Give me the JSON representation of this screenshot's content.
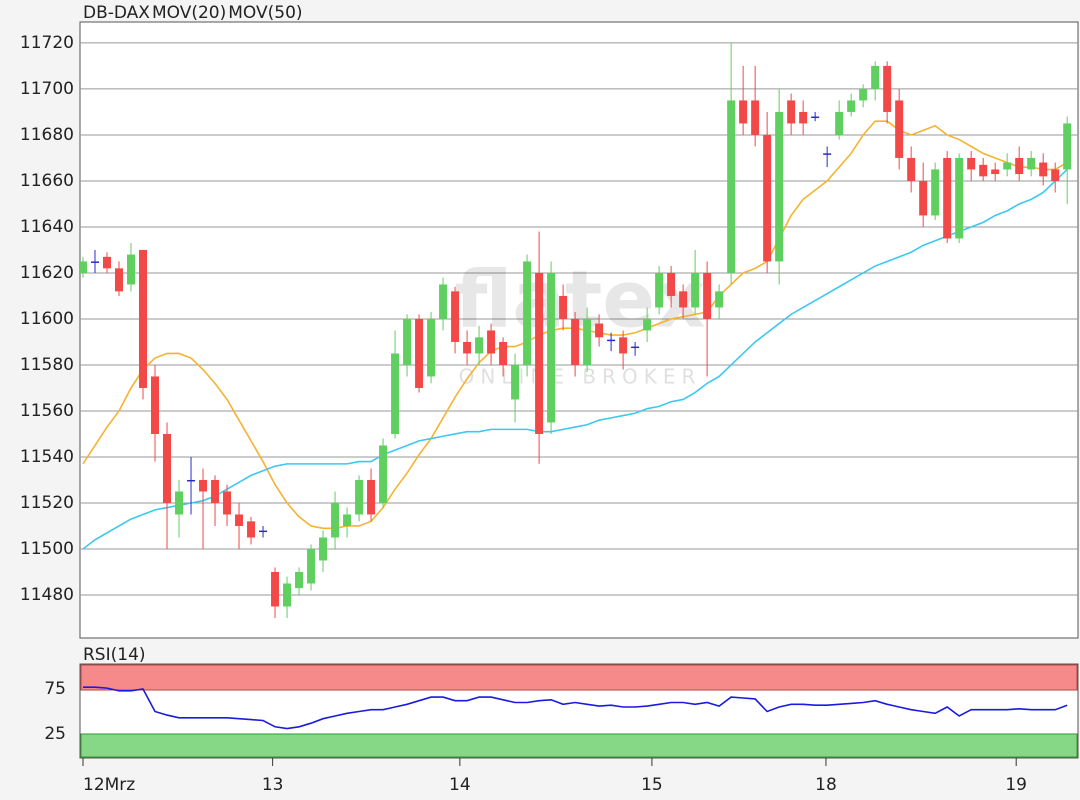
{
  "chart_data": [
    {
      "type": "candlestick",
      "name": "DB-DAX",
      "up_color": "#5fcf5f",
      "down_color": "#f24848",
      "flat_color": "#2a2ad0",
      "name_color": "#e8412b",
      "x": [
        0,
        1,
        2,
        3,
        4,
        5,
        6,
        7,
        8,
        9,
        10,
        11,
        12,
        13,
        14,
        15,
        16,
        17,
        18,
        19,
        20,
        21,
        22,
        23,
        24,
        25,
        26,
        27,
        28,
        29,
        30,
        31,
        32,
        33,
        34,
        35,
        36,
        37,
        38,
        39,
        40,
        41,
        42,
        43,
        44,
        45,
        46,
        47,
        48,
        49,
        50,
        51,
        52,
        53,
        54,
        55,
        56,
        57,
        58,
        59,
        60,
        61,
        62,
        63,
        64,
        65,
        66,
        67,
        68,
        69,
        70,
        71,
        72,
        73,
        74,
        75,
        76,
        77,
        78,
        79,
        80,
        81,
        82
      ],
      "open": [
        11620,
        11625,
        11627,
        11622,
        11615,
        11630,
        11575,
        11550,
        11515,
        11530,
        11530,
        11530,
        11525,
        11515,
        11512,
        11508,
        11490,
        11475,
        11483,
        11485,
        11495,
        11505,
        11510,
        11515,
        11530,
        11520,
        11550,
        11580,
        11600,
        11575,
        11600,
        11612,
        11590,
        11585,
        11595,
        11590,
        11565,
        11580,
        11620,
        11555,
        11610,
        11600,
        11580,
        11598,
        11591,
        11592,
        11588,
        11595,
        11605,
        11620,
        11612,
        11605,
        11620,
        11605,
        11620,
        11695,
        11695,
        11680,
        11625,
        11695,
        11690,
        11688,
        11672,
        11680,
        11690,
        11695,
        11700,
        11710,
        11695,
        11670,
        11660,
        11645,
        11670,
        11635,
        11670,
        11667,
        11665,
        11665,
        11670,
        11665,
        11668,
        11665,
        11665
      ],
      "high": [
        11627,
        11630,
        11629,
        11625,
        11633,
        11630,
        11580,
        11555,
        11530,
        11540,
        11535,
        11532,
        11528,
        11520,
        11514,
        11510,
        11492,
        11488,
        11492,
        11502,
        11508,
        11525,
        11518,
        11532,
        11535,
        11548,
        11595,
        11602,
        11602,
        11603,
        11618,
        11614,
        11595,
        11597,
        11598,
        11592,
        11585,
        11628,
        11638,
        11625,
        11615,
        11603,
        11605,
        11602,
        11594,
        11595,
        11590,
        11605,
        11623,
        11623,
        11615,
        11630,
        11625,
        11615,
        11720,
        11710,
        11710,
        11690,
        11700,
        11698,
        11695,
        11690,
        11675,
        11695,
        11698,
        11702,
        11712,
        11712,
        11700,
        11675,
        11668,
        11668,
        11673,
        11672,
        11673,
        11670,
        11668,
        11672,
        11675,
        11673,
        11672,
        11668,
        11688
      ],
      "low": [
        11618,
        11620,
        11620,
        11610,
        11612,
        11565,
        11538,
        11500,
        11505,
        11515,
        11500,
        11510,
        11510,
        11500,
        11502,
        11505,
        11470,
        11470,
        11480,
        11482,
        11490,
        11500,
        11505,
        11512,
        11512,
        11518,
        11548,
        11575,
        11568,
        11572,
        11595,
        11585,
        11580,
        11580,
        11580,
        11575,
        11555,
        11575,
        11537,
        11550,
        11595,
        11575,
        11577,
        11588,
        11586,
        11578,
        11584,
        11590,
        11602,
        11605,
        11600,
        11602,
        11575,
        11600,
        11615,
        11680,
        11675,
        11620,
        11615,
        11680,
        11680,
        11686,
        11666,
        11678,
        11688,
        11692,
        11695,
        11685,
        11665,
        11655,
        11640,
        11643,
        11633,
        11633,
        11660,
        11660,
        11660,
        11662,
        11660,
        11662,
        11658,
        11655,
        11650
      ],
      "close": [
        11625,
        11625,
        11622,
        11612,
        11628,
        11570,
        11550,
        11520,
        11525,
        11530,
        11525,
        11520,
        11515,
        11510,
        11505,
        11508,
        11475,
        11485,
        11490,
        11500,
        11505,
        11520,
        11515,
        11530,
        11515,
        11545,
        11585,
        11600,
        11570,
        11600,
        11615,
        11590,
        11585,
        11592,
        11585,
        11580,
        11580,
        11625,
        11550,
        11620,
        11600,
        11580,
        11600,
        11592,
        11591,
        11585,
        11588,
        11600,
        11620,
        11610,
        11605,
        11620,
        11600,
        11612,
        11695,
        11685,
        11680,
        11625,
        11690,
        11685,
        11685,
        11688,
        11672,
        11690,
        11695,
        11700,
        11710,
        11690,
        11670,
        11660,
        11645,
        11665,
        11635,
        11670,
        11665,
        11662,
        11663,
        11668,
        11663,
        11670,
        11662,
        11660,
        11685
      ],
      "series": [
        {
          "name": "MOV(20)",
          "color": "#f5b331",
          "values": [
            11537,
            11545,
            11553,
            11560,
            11570,
            11578,
            11583,
            11585,
            11585,
            11583,
            11578,
            11572,
            11565,
            11556,
            11547,
            11538,
            11528,
            11520,
            11514,
            11510,
            11509,
            11509,
            11510,
            11510,
            11512,
            11518,
            11526,
            11533,
            11541,
            11548,
            11557,
            11566,
            11574,
            11581,
            11586,
            11588,
            11588,
            11590,
            11593,
            11595,
            11596,
            11596,
            11595,
            11594,
            11593,
            11593,
            11594,
            11596,
            11598,
            11600,
            11601,
            11602,
            11603,
            11610,
            11615,
            11620,
            11622,
            11625,
            11635,
            11645,
            11652,
            11656,
            11660,
            11666,
            11672,
            11680,
            11686,
            11686,
            11682,
            11680,
            11682,
            11684,
            11680,
            11678,
            11675,
            11672,
            11670,
            11668,
            11666,
            11666,
            11665,
            11665,
            11668
          ]
        },
        {
          "name": "MOV(50)",
          "color": "#3cc8f0",
          "values": [
            11500,
            11504,
            11507,
            11510,
            11513,
            11515,
            11517,
            11518,
            11519,
            11520,
            11521,
            11523,
            11526,
            11529,
            11532,
            11534,
            11536,
            11537,
            11537,
            11537,
            11537,
            11537,
            11537,
            11538,
            11538,
            11541,
            11543,
            11545,
            11547,
            11548,
            11549,
            11550,
            11551,
            11551,
            11552,
            11552,
            11552,
            11552,
            11551,
            11551,
            11552,
            11553,
            11554,
            11556,
            11557,
            11558,
            11559,
            11561,
            11562,
            11564,
            11565,
            11568,
            11572,
            11575,
            11580,
            11585,
            11590,
            11594,
            11598,
            11602,
            11605,
            11608,
            11611,
            11614,
            11617,
            11620,
            11623,
            11625,
            11627,
            11629,
            11632,
            11634,
            11636,
            11638,
            11640,
            11642,
            11645,
            11647,
            11650,
            11652,
            11655,
            11660,
            11665
          ]
        }
      ],
      "xlim": [
        -0.25,
        82.9
      ],
      "ylim": [
        11461.3,
        11729.1
      ],
      "yticks": [
        11480,
        11500,
        11520,
        11540,
        11560,
        11580,
        11600,
        11620,
        11640,
        11660,
        11680,
        11700,
        11720
      ],
      "grid": true,
      "watermark": "flatex",
      "watermark_sub": "ONLINE BROKER"
    },
    {
      "type": "line",
      "series": [
        {
          "name": "RSI(14)",
          "color": "#1a1ae0",
          "values": [
            77,
            77,
            76,
            73,
            73,
            75,
            50,
            46,
            43,
            43,
            43,
            43,
            43,
            42,
            41,
            40,
            33,
            31,
            33,
            37,
            42,
            45,
            48,
            50,
            52,
            52,
            55,
            58,
            62,
            66,
            66,
            62,
            62,
            66,
            66,
            63,
            60,
            60,
            62,
            63,
            58,
            60,
            58,
            56,
            57,
            55,
            55,
            56,
            58,
            60,
            60,
            58,
            60,
            56,
            66,
            65,
            64,
            50,
            55,
            58,
            58,
            57,
            57,
            58,
            59,
            60,
            62,
            58,
            55,
            52,
            50,
            48,
            55,
            45,
            52,
            52,
            52,
            52,
            53,
            52,
            52,
            52,
            57
          ]
        }
      ],
      "x": [
        0,
        1,
        2,
        3,
        4,
        5,
        6,
        7,
        8,
        9,
        10,
        11,
        12,
        13,
        14,
        15,
        16,
        17,
        18,
        19,
        20,
        21,
        22,
        23,
        24,
        25,
        26,
        27,
        28,
        29,
        30,
        31,
        32,
        33,
        34,
        35,
        36,
        37,
        38,
        39,
        40,
        41,
        42,
        43,
        44,
        45,
        46,
        47,
        48,
        49,
        50,
        51,
        52,
        53,
        54,
        55,
        56,
        57,
        58,
        59,
        60,
        61,
        62,
        63,
        64,
        65,
        66,
        67,
        68,
        69,
        70,
        71,
        72,
        73,
        74,
        75,
        76,
        77,
        78,
        79,
        80,
        81,
        82
      ],
      "xlim": [
        -0.25,
        82.9
      ],
      "ylim": [
        -1.7,
        102.8
      ],
      "yticks": [
        25,
        75
      ],
      "upper_band": 75,
      "lower_band": 25,
      "upper_color": "#f68a8a",
      "lower_color": "#86d886",
      "xticks": [
        {
          "value": 0,
          "label": "12Mrz"
        },
        {
          "value": 15.8,
          "label": "13"
        },
        {
          "value": 31.4,
          "label": "14"
        },
        {
          "value": 47.4,
          "label": "15"
        },
        {
          "value": 61.9,
          "label": "18"
        },
        {
          "value": 77.75,
          "label": "19"
        }
      ]
    }
  ]
}
